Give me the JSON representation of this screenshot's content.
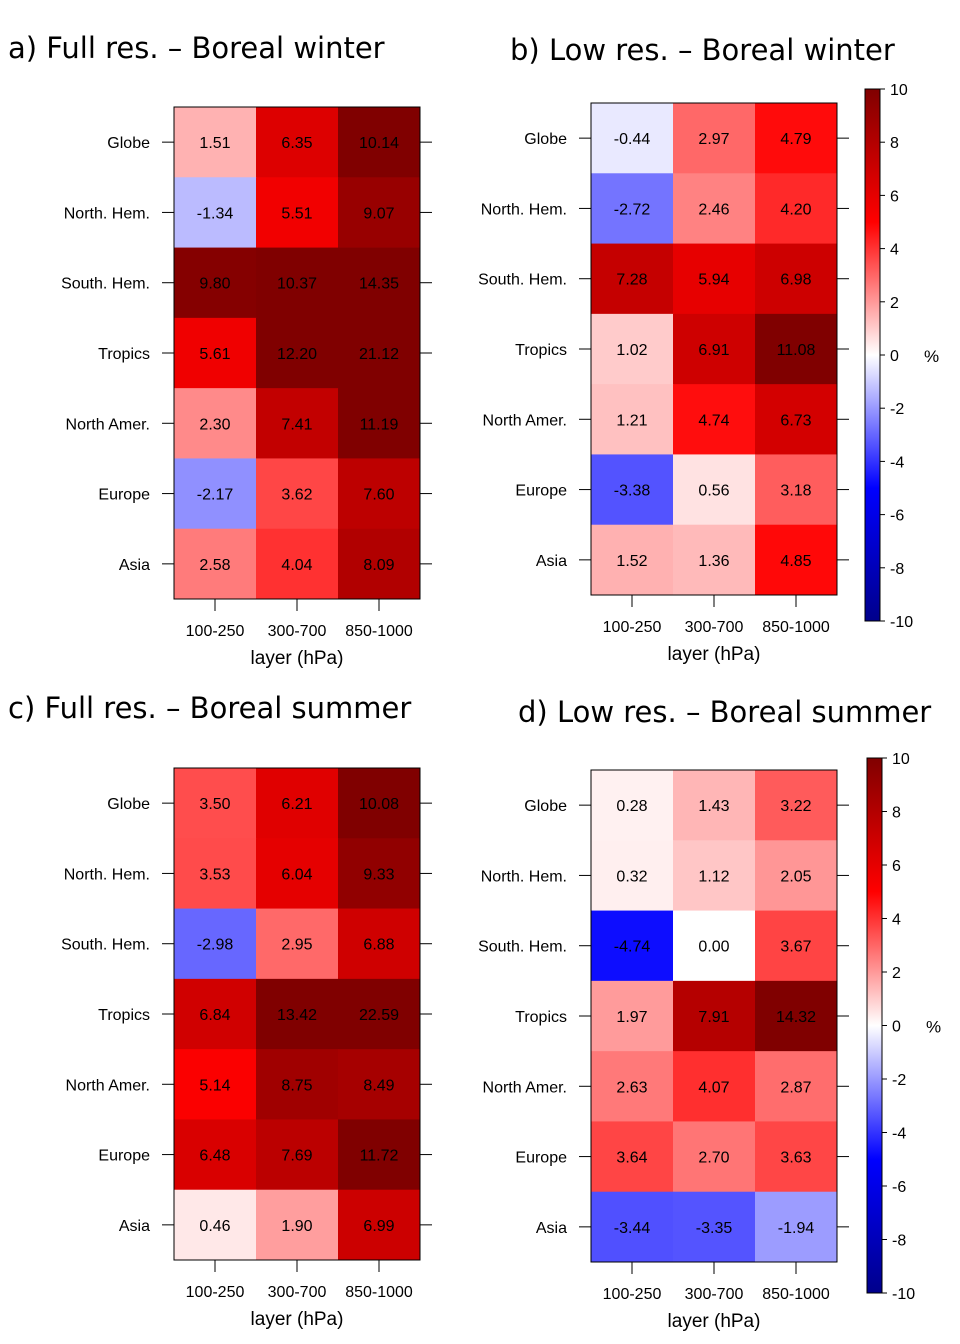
{
  "colorbar": {
    "min": -10,
    "max": 10,
    "ticks": [
      10,
      8,
      6,
      4,
      2,
      0,
      -2,
      -4,
      -6,
      -8,
      -10
    ],
    "unit": "%",
    "colors": {
      "neg_end": "#00008b",
      "neg_mid": "#0000ff",
      "zero": "#ffffff",
      "pos_mid": "#ff0000",
      "pos_end": "#800000"
    }
  },
  "chart_data": [
    {
      "type": "heatmap",
      "title": "a) Full res. – Boreal winter",
      "xlabel": "layer (hPa)",
      "columns": [
        "100-250",
        "300-700",
        "850-1000"
      ],
      "rows": [
        "Globe",
        "North. Hem.",
        "South. Hem.",
        "Tropics",
        "North Amer.",
        "Europe",
        "Asia"
      ],
      "values": [
        [
          1.51,
          6.35,
          10.14
        ],
        [
          -1.34,
          5.51,
          9.07
        ],
        [
          9.8,
          10.37,
          14.35
        ],
        [
          5.61,
          12.2,
          21.12
        ],
        [
          2.3,
          7.41,
          11.19
        ],
        [
          -2.17,
          3.62,
          7.6
        ],
        [
          2.58,
          4.04,
          8.09
        ]
      ],
      "labels": [
        [
          "1.51",
          "6.35",
          "10.14"
        ],
        [
          "-1.34",
          "5.51",
          "9.07"
        ],
        [
          "9.80",
          "10.37",
          "14.35"
        ],
        [
          "5.61",
          "12.20",
          "21.12"
        ],
        [
          "2.30",
          "7.41",
          "11.19"
        ],
        [
          "-2.17",
          "3.62",
          "7.60"
        ],
        [
          "2.58",
          "4.04",
          "8.09"
        ]
      ]
    },
    {
      "type": "heatmap",
      "title": "b) Low res. – Boreal winter",
      "xlabel": "layer (hPa)",
      "columns": [
        "100-250",
        "300-700",
        "850-1000"
      ],
      "rows": [
        "Globe",
        "North. Hem.",
        "South. Hem.",
        "Tropics",
        "North Amer.",
        "Europe",
        "Asia"
      ],
      "values": [
        [
          -0.44,
          2.97,
          4.79
        ],
        [
          -2.72,
          2.46,
          4.2
        ],
        [
          7.28,
          5.94,
          6.98
        ],
        [
          1.02,
          6.91,
          11.08
        ],
        [
          1.21,
          4.74,
          6.73
        ],
        [
          -3.38,
          0.56,
          3.18
        ],
        [
          1.52,
          1.36,
          4.85
        ]
      ],
      "labels": [
        [
          "-0.44",
          "2.97",
          "4.79"
        ],
        [
          "-2.72",
          "2.46",
          "4.20"
        ],
        [
          "7.28",
          "5.94",
          "6.98"
        ],
        [
          "1.02",
          "6.91",
          "11.08"
        ],
        [
          "1.21",
          "4.74",
          "6.73"
        ],
        [
          "-3.38",
          "0.56",
          "3.18"
        ],
        [
          "1.52",
          "1.36",
          "4.85"
        ]
      ]
    },
    {
      "type": "heatmap",
      "title": "c) Full res. – Boreal summer",
      "xlabel": "layer (hPa)",
      "columns": [
        "100-250",
        "300-700",
        "850-1000"
      ],
      "rows": [
        "Globe",
        "North. Hem.",
        "South. Hem.",
        "Tropics",
        "North Amer.",
        "Europe",
        "Asia"
      ],
      "values": [
        [
          3.5,
          6.21,
          10.08
        ],
        [
          3.53,
          6.04,
          9.33
        ],
        [
          -2.98,
          2.95,
          6.88
        ],
        [
          6.84,
          13.42,
          22.59
        ],
        [
          5.14,
          8.75,
          8.49
        ],
        [
          6.48,
          7.69,
          11.72
        ],
        [
          0.46,
          1.9,
          6.99
        ]
      ],
      "labels": [
        [
          "3.50",
          "6.21",
          "10.08"
        ],
        [
          "3.53",
          "6.04",
          "9.33"
        ],
        [
          "-2.98",
          "2.95",
          "6.88"
        ],
        [
          "6.84",
          "13.42",
          "22.59"
        ],
        [
          "5.14",
          "8.75",
          "8.49"
        ],
        [
          "6.48",
          "7.69",
          "11.72"
        ],
        [
          "0.46",
          "1.90",
          "6.99"
        ]
      ]
    },
    {
      "type": "heatmap",
      "title": "d) Low res. – Boreal summer",
      "xlabel": "layer (hPa)",
      "columns": [
        "100-250",
        "300-700",
        "850-1000"
      ],
      "rows": [
        "Globe",
        "North. Hem.",
        "South. Hem.",
        "Tropics",
        "North Amer.",
        "Europe",
        "Asia"
      ],
      "values": [
        [
          0.28,
          1.43,
          3.22
        ],
        [
          0.32,
          1.12,
          2.05
        ],
        [
          -4.74,
          0.0,
          3.67
        ],
        [
          1.97,
          7.91,
          14.32
        ],
        [
          2.63,
          4.07,
          2.87
        ],
        [
          3.64,
          2.7,
          3.63
        ],
        [
          -3.44,
          -3.35,
          -1.94
        ]
      ],
      "labels": [
        [
          "0.28",
          "1.43",
          "3.22"
        ],
        [
          "0.32",
          "1.12",
          "2.05"
        ],
        [
          "-4.74",
          "0.00",
          "3.67"
        ],
        [
          "1.97",
          "7.91",
          "14.32"
        ],
        [
          "2.63",
          "4.07",
          "2.87"
        ],
        [
          "3.64",
          "2.70",
          "3.63"
        ],
        [
          "-3.44",
          "-3.35",
          "-1.94"
        ]
      ]
    }
  ]
}
